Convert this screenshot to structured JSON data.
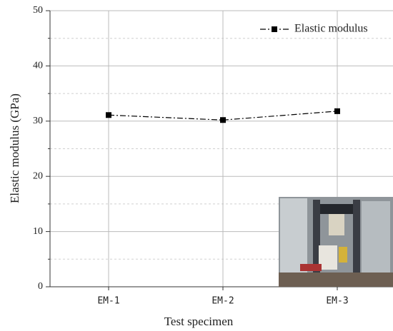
{
  "chart_data": {
    "type": "line",
    "x_label": "Test specimen",
    "y_label": "Elastic modulus (GPa)",
    "categories": [
      "EM-1",
      "EM-2",
      "EM-3"
    ],
    "series": [
      {
        "name": "Elastic modulus",
        "color": "#000000",
        "values": [
          31.1,
          30.2,
          31.8
        ]
      }
    ],
    "ylim": [
      0,
      50
    ],
    "yticks": [
      0,
      10,
      20,
      30,
      40,
      50
    ],
    "minor_yticks": [
      5,
      15,
      25,
      35,
      45
    ],
    "grid": true,
    "legend": "upper right"
  }
}
